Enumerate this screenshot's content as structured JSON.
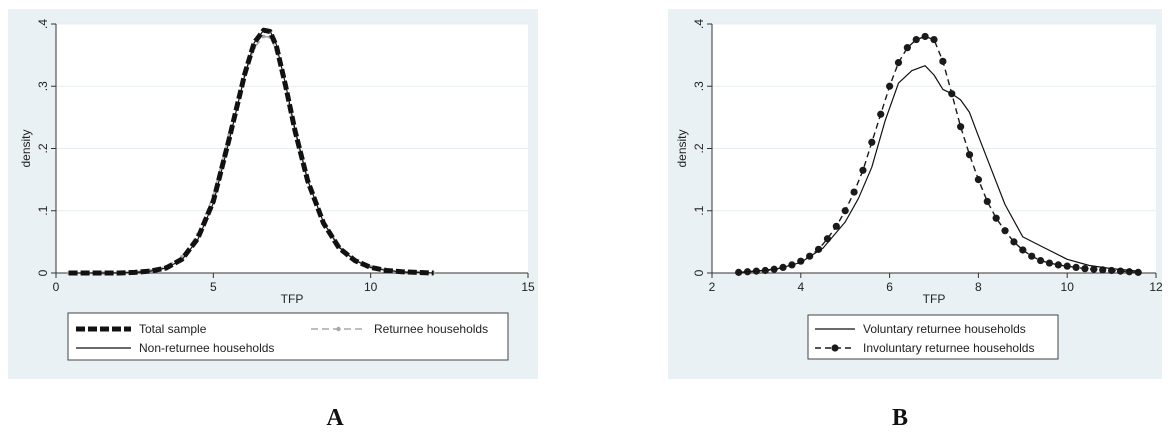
{
  "panels": [
    {
      "label": "A"
    },
    {
      "label": "B"
    }
  ],
  "colors": {
    "panel_bg": "#e9f1f5",
    "plot_bg": "#ffffff",
    "grid": "#e6edf1",
    "axis": "#333333",
    "total_sample": "#111111",
    "non_returnee": "#111111",
    "returnee": "#a8a8a8",
    "voluntary": "#111111",
    "involuntary": "#1a1a1a"
  },
  "chart_data": [
    {
      "type": "line",
      "title": "",
      "xlabel": "TFP",
      "ylabel": "density",
      "xlim": [
        0,
        15
      ],
      "ylim": [
        0,
        0.4
      ],
      "xticks": [
        0,
        5,
        10,
        15
      ],
      "xtick_labels": [
        "0",
        "5",
        "10",
        "15"
      ],
      "yticks": [
        0,
        0.1,
        0.2,
        0.3,
        0.4
      ],
      "ytick_labels": [
        "0",
        ".1",
        ".2",
        ".3",
        ".4"
      ],
      "grid": true,
      "legend_position": "bottom",
      "x": [
        0.4,
        1.0,
        1.5,
        2.0,
        2.5,
        3.0,
        3.5,
        4.0,
        4.5,
        5.0,
        5.5,
        6.0,
        6.3,
        6.6,
        6.8,
        7.0,
        7.3,
        7.6,
        8.0,
        8.5,
        9.0,
        9.5,
        10.0,
        10.5,
        11.0,
        11.5,
        12.0
      ],
      "series": [
        {
          "name": "Total sample",
          "style": "thick-dash",
          "values": [
            0.0,
            0.0,
            0.0,
            0.0,
            0.001,
            0.003,
            0.008,
            0.022,
            0.055,
            0.115,
            0.215,
            0.32,
            0.37,
            0.39,
            0.388,
            0.365,
            0.3,
            0.228,
            0.148,
            0.08,
            0.04,
            0.02,
            0.009,
            0.004,
            0.002,
            0.001,
            0.0
          ]
        },
        {
          "name": "Non-returnee households",
          "style": "solid",
          "values": [
            0.0,
            0.0,
            0.0,
            0.0,
            0.001,
            0.003,
            0.008,
            0.021,
            0.053,
            0.112,
            0.212,
            0.318,
            0.37,
            0.39,
            0.389,
            0.367,
            0.302,
            0.23,
            0.149,
            0.081,
            0.041,
            0.02,
            0.009,
            0.004,
            0.002,
            0.001,
            0.0
          ]
        },
        {
          "name": "Returnee households",
          "style": "dash-dot-gray",
          "values": [
            0.0,
            0.0,
            0.0,
            0.001,
            0.002,
            0.004,
            0.01,
            0.026,
            0.062,
            0.124,
            0.222,
            0.318,
            0.362,
            0.38,
            0.379,
            0.358,
            0.296,
            0.226,
            0.148,
            0.082,
            0.042,
            0.021,
            0.01,
            0.005,
            0.002,
            0.001,
            0.0
          ]
        }
      ]
    },
    {
      "type": "line",
      "title": "",
      "xlabel": "TFP",
      "ylabel": "density",
      "xlim": [
        2,
        12
      ],
      "ylim": [
        0,
        0.4
      ],
      "xticks": [
        2,
        4,
        6,
        8,
        10,
        12
      ],
      "xtick_labels": [
        "2",
        "4",
        "6",
        "8",
        "10",
        "12"
      ],
      "yticks": [
        0,
        0.1,
        0.2,
        0.3,
        0.4
      ],
      "ytick_labels": [
        "0",
        ".1",
        ".2",
        ".3",
        ".4"
      ],
      "grid": true,
      "legend_position": "bottom",
      "series": [
        {
          "name": "Voluntary returnee households",
          "style": "solid",
          "x": [
            2.6,
            3.0,
            3.5,
            4.0,
            4.5,
            5.0,
            5.3,
            5.6,
            5.9,
            6.2,
            6.5,
            6.8,
            7.0,
            7.2,
            7.4,
            7.6,
            7.8,
            8.0,
            8.3,
            8.6,
            9.0,
            9.5,
            10.0,
            10.5,
            11.0,
            11.6
          ],
          "values": [
            0.001,
            0.003,
            0.007,
            0.017,
            0.04,
            0.082,
            0.12,
            0.17,
            0.245,
            0.305,
            0.325,
            0.333,
            0.318,
            0.295,
            0.288,
            0.278,
            0.258,
            0.22,
            0.165,
            0.11,
            0.058,
            0.04,
            0.022,
            0.012,
            0.007,
            0.003
          ]
        },
        {
          "name": "Involuntary returnee households",
          "style": "dash-dot-black",
          "x": [
            2.6,
            2.8,
            3.0,
            3.2,
            3.4,
            3.6,
            3.8,
            4.0,
            4.2,
            4.4,
            4.6,
            4.8,
            5.0,
            5.2,
            5.4,
            5.6,
            5.8,
            6.0,
            6.2,
            6.4,
            6.6,
            6.8,
            7.0,
            7.2,
            7.4,
            7.6,
            7.8,
            8.0,
            8.2,
            8.4,
            8.6,
            8.8,
            9.0,
            9.2,
            9.4,
            9.6,
            9.8,
            10.0,
            10.2,
            10.4,
            10.6,
            10.8,
            11.0,
            11.2,
            11.4,
            11.6
          ],
          "values": [
            0.001,
            0.002,
            0.003,
            0.004,
            0.006,
            0.009,
            0.013,
            0.019,
            0.027,
            0.038,
            0.055,
            0.075,
            0.1,
            0.13,
            0.165,
            0.21,
            0.255,
            0.3,
            0.338,
            0.362,
            0.375,
            0.38,
            0.375,
            0.34,
            0.288,
            0.235,
            0.19,
            0.15,
            0.115,
            0.088,
            0.068,
            0.05,
            0.037,
            0.027,
            0.02,
            0.016,
            0.013,
            0.011,
            0.009,
            0.007,
            0.006,
            0.005,
            0.004,
            0.003,
            0.002,
            0.001
          ]
        }
      ]
    }
  ]
}
